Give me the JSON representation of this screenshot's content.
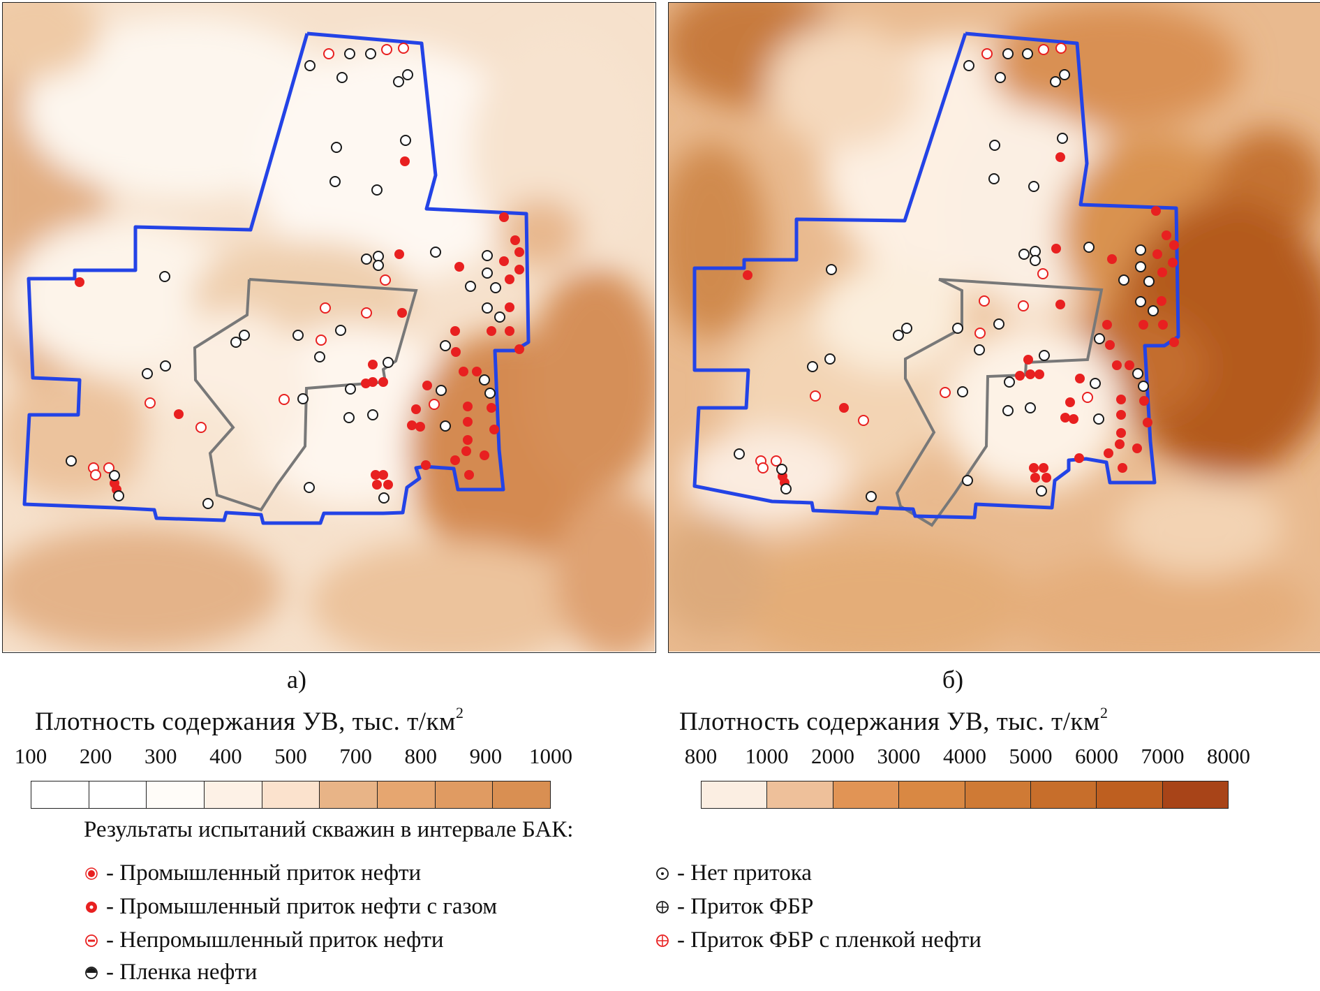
{
  "panels": [
    {
      "id": "a",
      "caption": "а)"
    },
    {
      "id": "b",
      "caption": "б)"
    }
  ],
  "legend_a": {
    "title": "Плотность содержания УВ, тыс. т/км",
    "title_sup": "2",
    "ticks": [
      "100",
      "200",
      "300",
      "400",
      "500",
      "700",
      "800",
      "900",
      "1000"
    ],
    "colors": [
      "#ffffff",
      "#ffffff",
      "#fffcf8",
      "#fdf1e6",
      "#fbe2cd",
      "#e8b487",
      "#e6a670",
      "#e09b62",
      "#d98f52"
    ]
  },
  "legend_b": {
    "title": "Плотность содержания УВ, тыс. т/км",
    "title_sup": "2",
    "ticks": [
      "800",
      "1000",
      "2000",
      "3000",
      "4000",
      "5000",
      "6000",
      "7000",
      "8000"
    ],
    "colors": [
      "#fbeee2",
      "#eec09a",
      "#e19455",
      "#d98843",
      "#cf7a35",
      "#c76e2b",
      "#be5f20",
      "#a84418"
    ]
  },
  "well_results": {
    "title": "Результаты испытаний скважин в интервале БАК:",
    "items": [
      {
        "icon": "industrial-oil-icon",
        "label": "- Промышленный приток нефти"
      },
      {
        "icon": "industrial-oil-gas-icon",
        "label": "- Промышленный приток нефти с газом"
      },
      {
        "icon": "non-industrial-oil-icon",
        "label": "- Непромышленный приток нефти"
      },
      {
        "icon": "oil-film-icon",
        "label": "- Пленка нефти"
      },
      {
        "icon": "no-inflow-icon",
        "label": "- Нет притока"
      },
      {
        "icon": "fbr-inflow-icon",
        "label": "- Приток ФБР"
      },
      {
        "icon": "fbr-oil-film-icon",
        "label": "- Приток ФБР с пленкой нефти"
      }
    ]
  },
  "colors": {
    "license_boundary": "#2343e6",
    "inner_boundary": "#787878",
    "well_red": "#e82020",
    "well_black": "#1a1a1a"
  }
}
